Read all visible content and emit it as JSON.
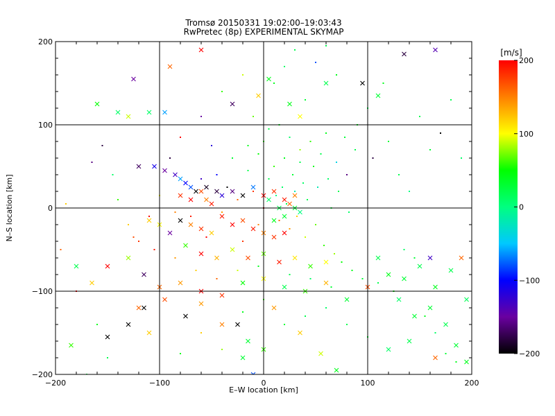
{
  "chart_data": {
    "type": "scatter",
    "title": "Tromsø 20150331 19:02:00–19:03:43",
    "subtitle": "RwPretec (8p) EXPERIMENTAL SKYMAP",
    "xlabel": "E–W location [km]",
    "ylabel": "N–S location [km]",
    "xlim": [
      -200,
      200
    ],
    "ylim": [
      -200,
      200
    ],
    "x_ticks": [
      "−200",
      "−100",
      "0",
      "100",
      "200"
    ],
    "y_ticks": [
      "−200",
      "−100",
      "0",
      "100",
      "200"
    ],
    "grid": true,
    "colorbar": {
      "label": "[m/s]",
      "range": [
        -200,
        200
      ],
      "ticks": [
        "200",
        "100",
        "0",
        "−100",
        "−200"
      ],
      "colors": [
        "#000000",
        "#6a00a0",
        "#0000ff",
        "#00c8ff",
        "#00ff80",
        "#00ff00",
        "#ffff00",
        "#ff8000",
        "#ff0000"
      ]
    },
    "series": [
      {
        "marker": "cross",
        "points": [
          [
            -125,
            155,
            -150
          ],
          [
            -90,
            170,
            160
          ],
          [
            -60,
            190,
            200
          ],
          [
            -30,
            125,
            -170
          ],
          [
            -5,
            135,
            120
          ],
          [
            5,
            155,
            40
          ],
          [
            25,
            125,
            40
          ],
          [
            35,
            110,
            100
          ],
          [
            60,
            150,
            20
          ],
          [
            95,
            150,
            -200
          ],
          [
            110,
            135,
            30
          ],
          [
            135,
            185,
            -180
          ],
          [
            165,
            190,
            -140
          ],
          [
            -160,
            125,
            50
          ],
          [
            -140,
            115,
            10
          ],
          [
            -130,
            110,
            90
          ],
          [
            -110,
            115,
            10
          ],
          [
            -95,
            115,
            -60
          ],
          [
            -120,
            50,
            -170
          ],
          [
            -105,
            50,
            -110
          ],
          [
            -95,
            45,
            -150
          ],
          [
            -85,
            40,
            -130
          ],
          [
            -80,
            35,
            -60
          ],
          [
            -75,
            30,
            -100
          ],
          [
            -70,
            25,
            -80
          ],
          [
            -65,
            20,
            -200
          ],
          [
            -55,
            25,
            -190
          ],
          [
            -45,
            20,
            -180
          ],
          [
            -40,
            15,
            -120
          ],
          [
            -30,
            20,
            -160
          ],
          [
            -20,
            15,
            -200
          ],
          [
            -10,
            25,
            -70
          ],
          [
            -80,
            15,
            180
          ],
          [
            -70,
            10,
            200
          ],
          [
            -60,
            20,
            170
          ],
          [
            -55,
            10,
            150
          ],
          [
            -50,
            5,
            190
          ],
          [
            0,
            15,
            200
          ],
          [
            10,
            20,
            180
          ],
          [
            20,
            10,
            190
          ],
          [
            25,
            5,
            160
          ],
          [
            30,
            15,
            150
          ],
          [
            5,
            10,
            10
          ],
          [
            15,
            0,
            20
          ],
          [
            20,
            -10,
            30
          ],
          [
            10,
            -15,
            40
          ],
          [
            30,
            0,
            30
          ],
          [
            35,
            -5,
            0
          ],
          [
            -40,
            -10,
            190
          ],
          [
            -30,
            -20,
            200
          ],
          [
            -20,
            -15,
            170
          ],
          [
            -10,
            -25,
            190
          ],
          [
            0,
            -30,
            150
          ],
          [
            10,
            -35,
            180
          ],
          [
            20,
            -30,
            200
          ],
          [
            -50,
            -30,
            120
          ],
          [
            -60,
            -25,
            180
          ],
          [
            -70,
            -20,
            150
          ],
          [
            -80,
            -15,
            -200
          ],
          [
            -90,
            -30,
            -150
          ],
          [
            -100,
            -20,
            100
          ],
          [
            -110,
            -15,
            120
          ],
          [
            -75,
            -45,
            60
          ],
          [
            -60,
            -55,
            200
          ],
          [
            -45,
            -60,
            130
          ],
          [
            -30,
            -50,
            90
          ],
          [
            -15,
            -60,
            170
          ],
          [
            0,
            -55,
            70
          ],
          [
            15,
            -65,
            190
          ],
          [
            30,
            -60,
            110
          ],
          [
            45,
            -70,
            60
          ],
          [
            60,
            -65,
            100
          ],
          [
            -130,
            -60,
            80
          ],
          [
            -115,
            -80,
            -170
          ],
          [
            -100,
            -95,
            160
          ],
          [
            -80,
            -90,
            140
          ],
          [
            -60,
            -100,
            200
          ],
          [
            -40,
            -105,
            180
          ],
          [
            -20,
            -90,
            50
          ],
          [
            0,
            -85,
            100
          ],
          [
            20,
            -95,
            20
          ],
          [
            40,
            -100,
            60
          ],
          [
            60,
            -90,
            130
          ],
          [
            80,
            -110,
            30
          ],
          [
            100,
            -95,
            170
          ],
          [
            -150,
            -70,
            200
          ],
          [
            -165,
            -90,
            120
          ],
          [
            -180,
            -70,
            20
          ],
          [
            -185,
            -165,
            60
          ],
          [
            -120,
            -120,
            160
          ],
          [
            -110,
            -150,
            120
          ],
          [
            -75,
            -130,
            -200
          ],
          [
            -40,
            -140,
            150
          ],
          [
            -15,
            -160,
            30
          ],
          [
            10,
            -120,
            140
          ],
          [
            35,
            -150,
            120
          ],
          [
            55,
            -175,
            90
          ],
          [
            70,
            -195,
            40
          ],
          [
            110,
            -60,
            20
          ],
          [
            120,
            -80,
            40
          ],
          [
            135,
            -85,
            30
          ],
          [
            150,
            -70,
            20
          ],
          [
            160,
            -60,
            -130
          ],
          [
            165,
            -95,
            40
          ],
          [
            180,
            -75,
            20
          ],
          [
            190,
            -60,
            160
          ],
          [
            195,
            -110,
            20
          ],
          [
            130,
            -110,
            10
          ],
          [
            145,
            -130,
            30
          ],
          [
            160,
            -120,
            30
          ],
          [
            175,
            -140,
            20
          ],
          [
            185,
            -165,
            30
          ],
          [
            195,
            -185,
            40
          ],
          [
            120,
            -170,
            10
          ],
          [
            140,
            -160,
            20
          ],
          [
            165,
            -180,
            160
          ],
          [
            -150,
            -155,
            -200
          ],
          [
            -130,
            -140,
            -200
          ],
          [
            -115,
            -120,
            -200
          ],
          [
            -95,
            -110,
            170
          ],
          [
            -60,
            -115,
            140
          ],
          [
            -20,
            -180,
            30
          ],
          [
            -10,
            -200,
            -80
          ],
          [
            -25,
            -140,
            -200
          ],
          [
            0,
            -170,
            60
          ]
        ]
      },
      {
        "marker": "dot",
        "points": [
          [
            -140,
            10,
            60
          ],
          [
            -130,
            -20,
            120
          ],
          [
            -120,
            -40,
            180
          ],
          [
            -110,
            -10,
            200
          ],
          [
            -100,
            15,
            100
          ],
          [
            -90,
            60,
            -180
          ],
          [
            -85,
            -5,
            150
          ],
          [
            -70,
            -10,
            190
          ],
          [
            -60,
            35,
            -130
          ],
          [
            -55,
            -35,
            200
          ],
          [
            -45,
            40,
            -100
          ],
          [
            -40,
            -5,
            140
          ],
          [
            -35,
            25,
            -200
          ],
          [
            -25,
            10,
            160
          ],
          [
            -20,
            -40,
            180
          ],
          [
            -15,
            45,
            20
          ],
          [
            -10,
            20,
            180
          ],
          [
            -5,
            -20,
            150
          ],
          [
            0,
            0,
            200
          ],
          [
            5,
            35,
            20
          ],
          [
            10,
            50,
            60
          ],
          [
            12,
            15,
            0
          ],
          [
            15,
            -15,
            160
          ],
          [
            18,
            25,
            10
          ],
          [
            20,
            60,
            40
          ],
          [
            22,
            5,
            20
          ],
          [
            25,
            -25,
            140
          ],
          [
            28,
            40,
            30
          ],
          [
            30,
            20,
            -20
          ],
          [
            32,
            -10,
            120
          ],
          [
            35,
            70,
            80
          ],
          [
            38,
            30,
            10
          ],
          [
            40,
            -35,
            90
          ],
          [
            42,
            10,
            20
          ],
          [
            45,
            80,
            60
          ],
          [
            48,
            50,
            40
          ],
          [
            50,
            -20,
            70
          ],
          [
            52,
            25,
            -20
          ],
          [
            55,
            65,
            20
          ],
          [
            58,
            -45,
            60
          ],
          [
            60,
            90,
            40
          ],
          [
            62,
            35,
            10
          ],
          [
            65,
            0,
            30
          ],
          [
            68,
            -55,
            80
          ],
          [
            70,
            55,
            -40
          ],
          [
            72,
            20,
            20
          ],
          [
            75,
            -65,
            50
          ],
          [
            78,
            85,
            30
          ],
          [
            80,
            40,
            -160
          ],
          [
            82,
            -5,
            10
          ],
          [
            85,
            -75,
            40
          ],
          [
            88,
            70,
            20
          ],
          [
            90,
            100,
            40
          ],
          [
            95,
            -85,
            30
          ],
          [
            100,
            120,
            20
          ],
          [
            105,
            60,
            -180
          ],
          [
            110,
            -90,
            20
          ],
          [
            115,
            150,
            40
          ],
          [
            120,
            80,
            30
          ],
          [
            125,
            -100,
            50
          ],
          [
            130,
            40,
            20
          ],
          [
            135,
            -50,
            10
          ],
          [
            140,
            20,
            0
          ],
          [
            145,
            -60,
            30
          ],
          [
            150,
            110,
            20
          ],
          [
            155,
            -130,
            40
          ],
          [
            160,
            70,
            30
          ],
          [
            165,
            -150,
            10
          ],
          [
            170,
            90,
            -200
          ],
          [
            175,
            -175,
            30
          ],
          [
            180,
            130,
            20
          ],
          [
            185,
            -185,
            40
          ],
          [
            190,
            60,
            10
          ],
          [
            195,
            -110,
            0
          ],
          [
            -195,
            -50,
            160
          ],
          [
            -190,
            5,
            120
          ],
          [
            -180,
            -100,
            200
          ],
          [
            -170,
            -200,
            30
          ],
          [
            -165,
            55,
            -160
          ],
          [
            -160,
            -140,
            40
          ],
          [
            -155,
            75,
            -180
          ],
          [
            -150,
            -180,
            20
          ],
          [
            -145,
            40,
            10
          ],
          [
            10,
            150,
            40
          ],
          [
            20,
            170,
            10
          ],
          [
            30,
            190,
            20
          ],
          [
            40,
            130,
            30
          ],
          [
            50,
            175,
            -80
          ],
          [
            60,
            195,
            20
          ],
          [
            70,
            160,
            40
          ],
          [
            -20,
            160,
            90
          ],
          [
            -40,
            140,
            60
          ],
          [
            -60,
            110,
            -150
          ],
          [
            -80,
            85,
            200
          ],
          [
            -50,
            75,
            -120
          ],
          [
            -30,
            60,
            30
          ],
          [
            -15,
            75,
            40
          ],
          [
            0,
            80,
            60
          ],
          [
            5,
            95,
            20
          ],
          [
            15,
            100,
            40
          ],
          [
            25,
            85,
            10
          ],
          [
            35,
            55,
            20
          ],
          [
            -10,
            110,
            70
          ],
          [
            -5,
            65,
            50
          ],
          [
            -25,
            -75,
            90
          ],
          [
            -5,
            -70,
            40
          ],
          [
            25,
            -80,
            20
          ],
          [
            45,
            -85,
            10
          ],
          [
            65,
            -95,
            30
          ],
          [
            -45,
            -85,
            160
          ],
          [
            -65,
            -75,
            120
          ],
          [
            -85,
            -60,
            140
          ],
          [
            -105,
            -50,
            190
          ],
          [
            -125,
            -35,
            170
          ],
          [
            -20,
            -125,
            40
          ],
          [
            0,
            -110,
            60
          ],
          [
            20,
            -140,
            30
          ],
          [
            40,
            -130,
            20
          ],
          [
            60,
            -120,
            10
          ],
          [
            80,
            -140,
            20
          ],
          [
            100,
            -155,
            30
          ],
          [
            -40,
            -170,
            80
          ],
          [
            -60,
            -150,
            120
          ],
          [
            -80,
            -175,
            40
          ]
        ]
      }
    ]
  }
}
